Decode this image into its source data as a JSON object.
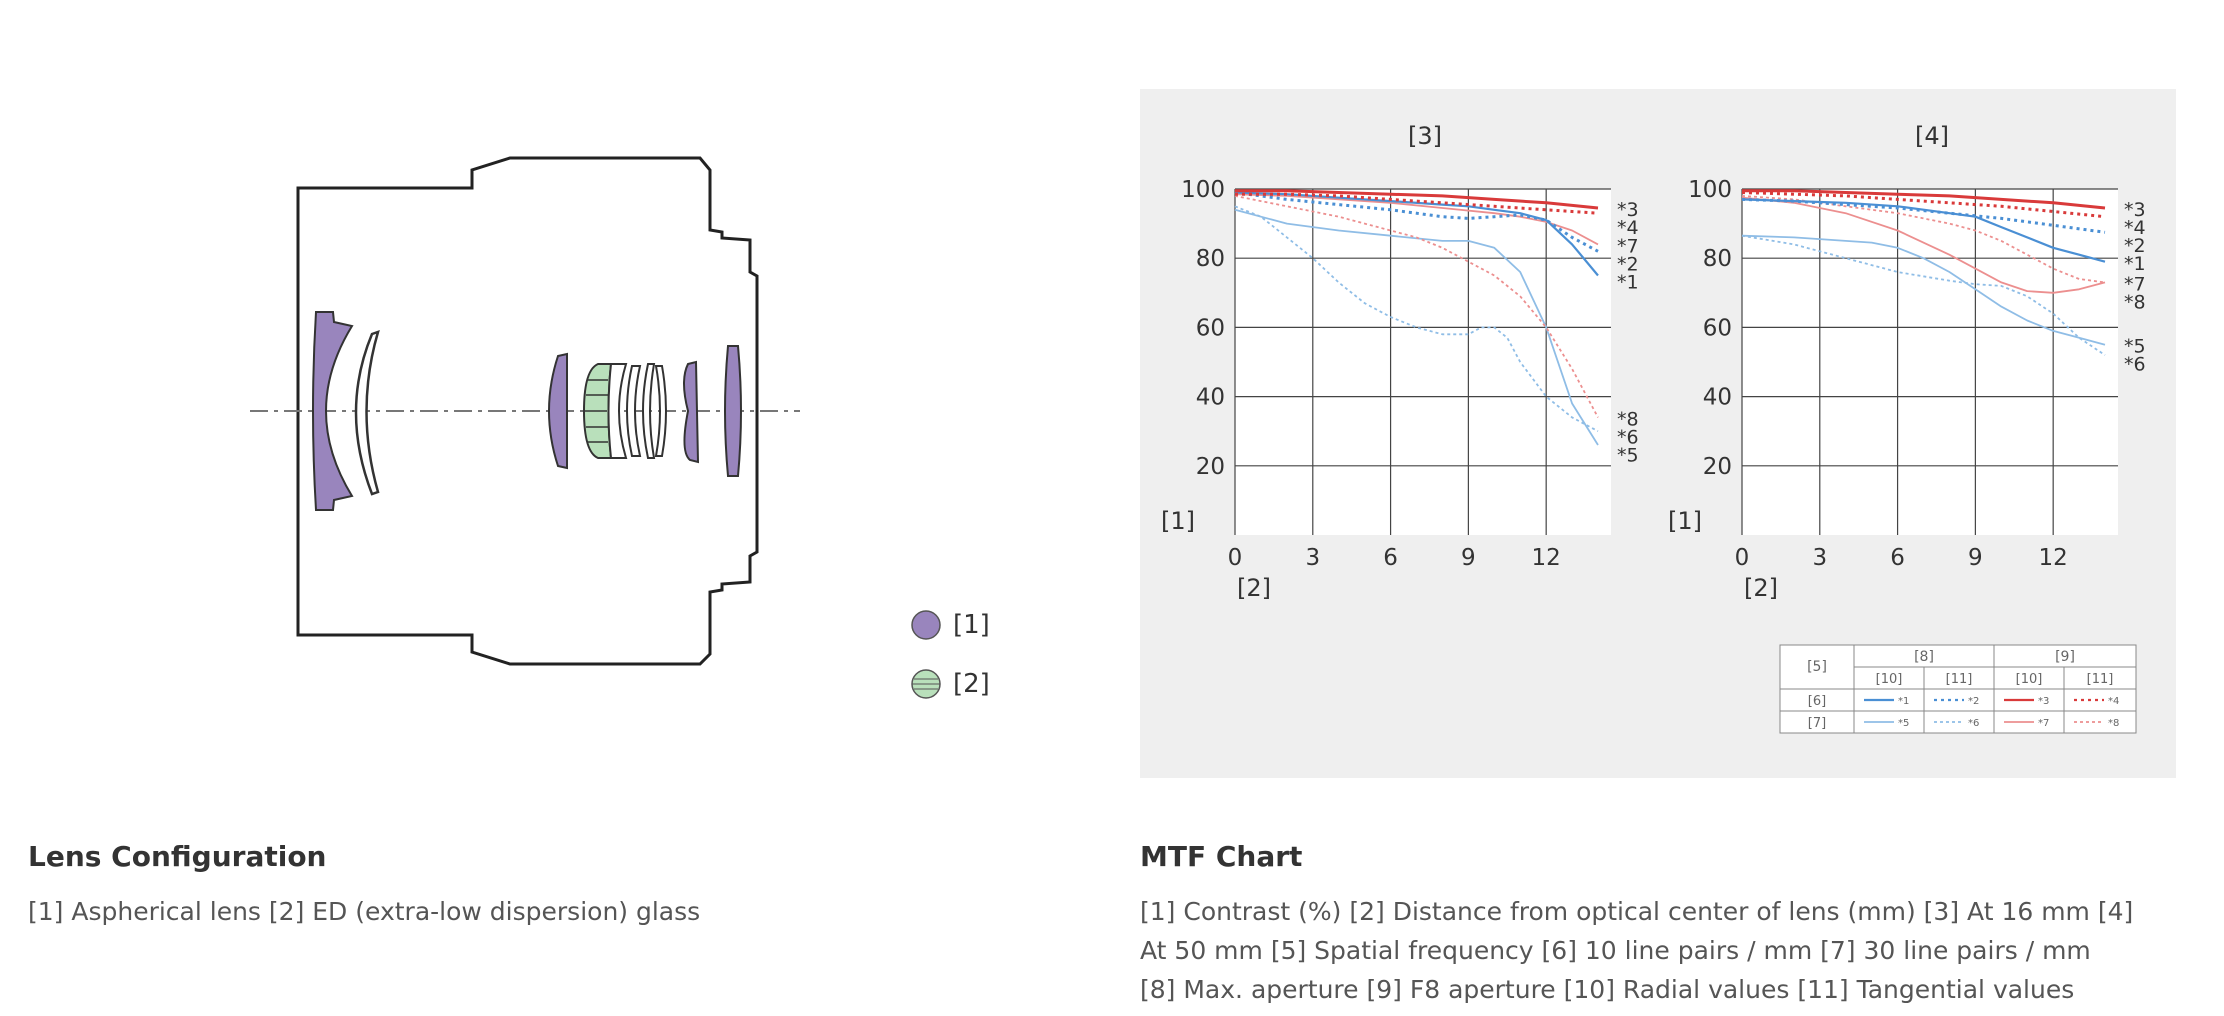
{
  "lens_configuration": {
    "title": "Lens Configuration",
    "caption": "[1] Aspherical lens  [2] ED (extra-low dispersion) glass",
    "legend": [
      {
        "label": "[1]",
        "color": "#9985bd",
        "icon": "aspherical-lens-icon"
      },
      {
        "label": "[2]",
        "color": "#b9e0bb",
        "icon": "ed-glass-icon"
      }
    ]
  },
  "mtf_chart": {
    "title": "MTF Chart",
    "caption_lines": [
      "[1] Contrast (%)  [2] Distance from optical center of lens (mm)  [3] At 16 mm  [4]",
      "At 50 mm  [5] Spatial frequency  [6] 10 line pairs / mm  [7] 30 line pairs / mm",
      "[8] Max. aperture  [9] F8 aperture  [10] Radial values  [11] Tangential values"
    ],
    "legend_table": {
      "corner": "[5]",
      "group_headers": [
        "[8]",
        "[9]"
      ],
      "sub_headers": [
        "[10]",
        "[11]",
        "[10]",
        "[11]"
      ],
      "rows": [
        {
          "label": "[6]",
          "cells": [
            "*1",
            "*2",
            "*3",
            "*4"
          ]
        },
        {
          "label": "[7]",
          "cells": [
            "*5",
            "*6",
            "*7",
            "*8"
          ]
        }
      ]
    },
    "colors": {
      "blue": "#4a8fd4",
      "light_blue": "#8fbde6",
      "red": "#d93a3a",
      "light_red": "#ec8f8f"
    }
  },
  "chart_data": [
    {
      "type": "line",
      "title": "[3]",
      "ylabel": "[1]",
      "xlabel": "[2]",
      "xlim": [
        0,
        14.5
      ],
      "ylim": [
        0,
        100
      ],
      "x_ticks": [
        0,
        3,
        6,
        9,
        12
      ],
      "y_ticks": [
        20,
        40,
        60,
        80,
        100
      ],
      "series": [
        {
          "name": "*1",
          "x": [
            0,
            2,
            4,
            6,
            8,
            9,
            10,
            11,
            12,
            13,
            14
          ],
          "y": [
            99,
            98.5,
            97.5,
            96.5,
            95.5,
            95,
            94,
            93,
            91,
            84,
            75
          ]
        },
        {
          "name": "*2",
          "x": [
            0,
            2,
            4,
            6,
            8,
            9,
            10,
            11,
            12,
            13,
            14
          ],
          "y": [
            99,
            97,
            95.5,
            94,
            92,
            91.5,
            92,
            92.5,
            91,
            86,
            82
          ]
        },
        {
          "name": "*3",
          "x": [
            0,
            2,
            4,
            6,
            8,
            10,
            12,
            14
          ],
          "y": [
            99.5,
            99.5,
            99,
            98.5,
            98,
            97,
            96,
            94.5
          ]
        },
        {
          "name": "*4",
          "x": [
            0,
            2,
            4,
            6,
            8,
            10,
            12,
            14
          ],
          "y": [
            98.5,
            98.5,
            98,
            97,
            96,
            95,
            94,
            93
          ]
        },
        {
          "name": "*5",
          "x": [
            0,
            2,
            4,
            6,
            8,
            9,
            10,
            11,
            12,
            13,
            14
          ],
          "y": [
            94,
            90,
            88,
            86.5,
            85,
            85,
            83,
            76,
            60,
            38,
            26
          ]
        },
        {
          "name": "*6",
          "x": [
            0,
            1,
            2,
            3,
            4,
            5,
            6,
            7,
            8,
            9,
            9.5,
            10,
            10.5,
            11,
            12,
            13,
            14
          ],
          "y": [
            95,
            92,
            86,
            80,
            73,
            67,
            63,
            60,
            58,
            58,
            60,
            60,
            57,
            50,
            40,
            34,
            30
          ]
        },
        {
          "name": "*7",
          "x": [
            0,
            2,
            4,
            6,
            8,
            10,
            11,
            12,
            13,
            14
          ],
          "y": [
            98.5,
            98,
            97,
            96,
            94.5,
            93,
            92,
            90.5,
            88,
            84
          ]
        },
        {
          "name": "*8",
          "x": [
            0,
            2,
            4,
            5,
            6,
            7,
            8,
            9,
            10,
            11,
            12,
            13,
            14
          ],
          "y": [
            98,
            95,
            92,
            90,
            88,
            86,
            83,
            79,
            75,
            69,
            60,
            48,
            34
          ]
        }
      ]
    },
    {
      "type": "line",
      "title": "[4]",
      "ylabel": "[1]",
      "xlabel": "[2]",
      "xlim": [
        0,
        14.5
      ],
      "ylim": [
        0,
        100
      ],
      "x_ticks": [
        0,
        3,
        6,
        9,
        12
      ],
      "y_ticks": [
        20,
        40,
        60,
        80,
        100
      ],
      "series": [
        {
          "name": "*1",
          "x": [
            0,
            2,
            4,
            6,
            8,
            9,
            10,
            11,
            12,
            13,
            14
          ],
          "y": [
            97,
            96.5,
            96,
            95,
            93,
            92,
            89,
            86,
            83,
            81,
            79
          ]
        },
        {
          "name": "*2",
          "x": [
            0,
            2,
            4,
            6,
            8,
            10,
            12,
            14
          ],
          "y": [
            97,
            96.5,
            95.5,
            94.5,
            93,
            91.5,
            89.5,
            87.5
          ]
        },
        {
          "name": "*3",
          "x": [
            0,
            2,
            4,
            6,
            8,
            10,
            12,
            14
          ],
          "y": [
            99.5,
            99.5,
            99,
            98.5,
            98,
            97,
            96,
            94.5
          ]
        },
        {
          "name": "*4",
          "x": [
            0,
            2,
            4,
            6,
            8,
            10,
            12,
            14
          ],
          "y": [
            99,
            98.5,
            98,
            97,
            96,
            95,
            93.5,
            92
          ]
        },
        {
          "name": "*5",
          "x": [
            0,
            2,
            4,
            5,
            6,
            7,
            8,
            9,
            10,
            11,
            12,
            13,
            14
          ],
          "y": [
            86.5,
            86,
            85,
            84.5,
            83,
            80,
            76,
            71,
            66,
            62,
            59,
            57,
            55
          ]
        },
        {
          "name": "*6",
          "x": [
            0,
            2,
            4,
            6,
            8,
            9,
            10,
            11,
            12,
            13,
            14
          ],
          "y": [
            86.5,
            84,
            80,
            76,
            73.5,
            72.5,
            72,
            69,
            64,
            57,
            52
          ]
        },
        {
          "name": "*7",
          "x": [
            0,
            2,
            4,
            6,
            8,
            9,
            10,
            11,
            12,
            13,
            14
          ],
          "y": [
            97.5,
            96,
            93,
            88,
            81,
            77,
            73,
            70.5,
            70,
            71,
            73
          ]
        },
        {
          "name": "*8",
          "x": [
            0,
            2,
            4,
            6,
            8,
            9,
            10,
            11,
            12,
            13,
            14
          ],
          "y": [
            98,
            97,
            95,
            93,
            90,
            88,
            85,
            81,
            77,
            74,
            73
          ]
        }
      ]
    }
  ]
}
